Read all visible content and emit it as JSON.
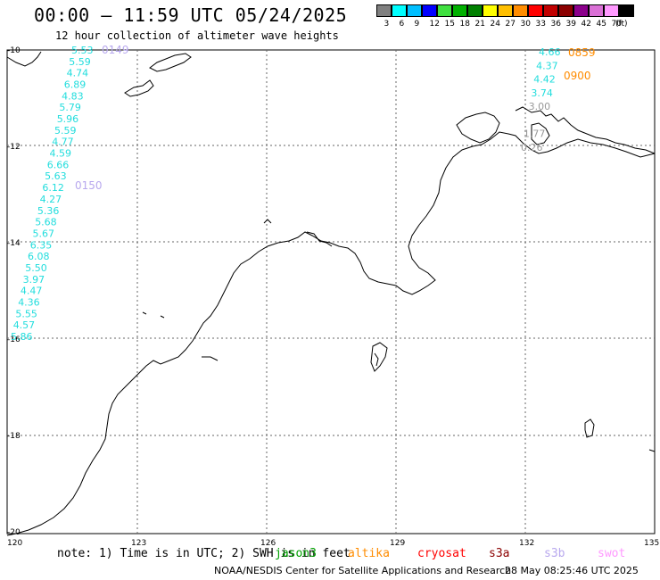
{
  "title": "00:00 – 11:59 UTC 05/24/2025",
  "subtitle": "12 hour collection of altimeter wave heights",
  "scale": {
    "labels": [
      "3",
      "6",
      "9",
      "12",
      "15",
      "18",
      "21",
      "24",
      "27",
      "30",
      "33",
      "36",
      "39",
      "42",
      "45",
      "70",
      "(ft)"
    ],
    "colors": [
      "#808080",
      "#00ffff",
      "#00bfff",
      "#0000ff",
      "#40e040",
      "#00b000",
      "#008000",
      "#ffff00",
      "#ffbf00",
      "#ff8c00",
      "#ff0000",
      "#c00000",
      "#8b0000",
      "#8b008b",
      "#da70d6",
      "#ff99ff",
      "#000000"
    ]
  },
  "lat_labels": [
    "-10",
    "-12",
    "-14",
    "-16",
    "-18",
    "-20"
  ],
  "lon_labels": [
    "120",
    "123",
    "126",
    "129",
    "132",
    "135"
  ],
  "track_west": {
    "color": "#22dddd",
    "values": [
      "5.53",
      "5.59",
      "4.74",
      "6.89",
      "4.83",
      "5.79",
      "5.96",
      "5.59",
      "4.77",
      "4.59",
      "6.66",
      "5.63",
      "6.12",
      "4.27",
      "5.36",
      "5.68",
      "5.67",
      "6.35",
      "6.08",
      "5.50",
      "3.97",
      "4.47",
      "4.36",
      "5.55",
      "4.57",
      "5.86"
    ]
  },
  "track_east": {
    "values": [
      "4.66",
      "4.37",
      "4.42",
      "3.74",
      "3.00",
      "",
      "1.77",
      "0.26"
    ],
    "colors": [
      "#22dddd",
      "#22dddd",
      "#22dddd",
      "#22dddd",
      "#999999",
      "#999999",
      "#999999",
      "#999999"
    ]
  },
  "pass_labels": [
    {
      "text": "0149",
      "color": "#b8a8ee"
    },
    {
      "text": "0150",
      "color": "#b8a8ee"
    },
    {
      "text": "0859",
      "color": "#ff8c00"
    },
    {
      "text": "0900",
      "color": "#ff8c00"
    }
  ],
  "note": "note: 1) Time is in UTC; 2) SWH is in feet",
  "satellites": [
    {
      "name": "jason3",
      "color": "#00a000"
    },
    {
      "name": "altika",
      "color": "#ff8c00"
    },
    {
      "name": "cryosat",
      "color": "#ff0000"
    },
    {
      "name": "s3a",
      "color": "#8b0000"
    },
    {
      "name": "s3b",
      "color": "#b8a8ee"
    },
    {
      "name": "swot",
      "color": "#ff99ff"
    }
  ],
  "credit": "NOAA/NESDIS Center for Satellite Applications and Research",
  "timestamp": "28 May 08:25:46 UTC 2025"
}
